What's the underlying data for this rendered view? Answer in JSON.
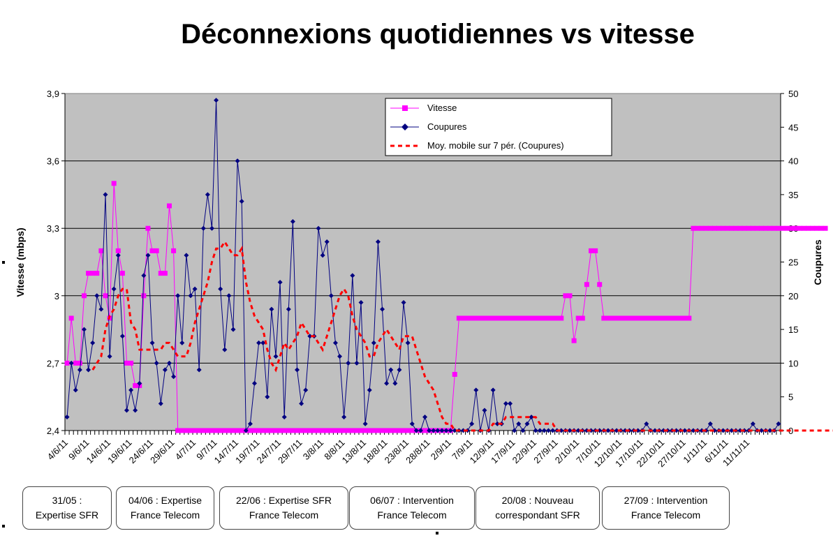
{
  "chart_data": {
    "type": "line",
    "title": "Déconnexions quotidiennes vs vitesse",
    "ylabel_left": "Vitesse (mbps)",
    "ylabel_right": "Coupures",
    "ylim_left": [
      2.4,
      3.9
    ],
    "ylim_right": [
      0,
      50
    ],
    "yticks_left": [
      "2,4",
      "2,7",
      "3",
      "3,3",
      "3,6",
      "3,9"
    ],
    "yticks_right": [
      "0",
      "5",
      "10",
      "15",
      "20",
      "25",
      "30",
      "35",
      "40",
      "45",
      "50"
    ],
    "xtick_labels": [
      "4/6/11",
      "9/6/11",
      "14/6/11",
      "19/6/11",
      "24/6/11",
      "29/6/11",
      "4/7/11",
      "9/7/11",
      "14/7/11",
      "19/7/11",
      "24/7/11",
      "29/7/11",
      "3/8/11",
      "8/8/11",
      "13/8/11",
      "18/8/11",
      "23/8/11",
      "28/8/11",
      "2/9/11",
      "7/9/11",
      "12/9/11",
      "17/9/11",
      "22/9/11",
      "27/9/11",
      "2/10/11",
      "7/10/11",
      "12/10/11",
      "17/10/11",
      "22/10/11",
      "27/10/11",
      "1/11/11",
      "6/11/11",
      "11/11/11"
    ],
    "grid": true,
    "legend_position": "top-right",
    "colors": {
      "vitesse": "#ff00ff",
      "coupures": "#000080",
      "moyenne": "#ff0000",
      "plot_bg": "#c0c0c0"
    },
    "series": [
      {
        "name": "Vitesse",
        "axis": "left",
        "start_index": 0,
        "values": [
          2.7,
          2.9,
          2.7,
          2.7,
          3.0,
          3.1,
          3.1,
          3.1,
          3.2,
          3.0,
          2.9,
          3.5,
          3.2,
          3.1,
          2.7,
          2.7,
          2.6,
          2.6,
          3.0,
          3.3,
          3.2,
          3.2,
          3.1,
          3.1,
          3.4,
          3.2,
          2.4,
          2.4,
          2.4,
          2.4,
          2.4,
          2.4,
          2.4,
          2.4,
          2.4,
          2.4,
          2.4,
          2.4,
          2.4,
          2.4,
          2.4,
          2.4,
          2.4,
          2.4,
          2.4,
          2.4,
          2.4,
          2.4,
          2.4,
          2.4,
          2.4,
          2.4,
          2.4,
          2.4,
          2.4,
          2.4,
          2.4,
          2.4,
          2.4,
          2.4,
          2.4,
          2.4,
          2.4,
          2.4,
          2.4,
          2.4,
          2.4,
          2.4,
          2.4,
          2.4,
          2.4,
          2.4,
          2.4,
          2.4,
          2.4,
          2.4,
          2.4,
          2.4,
          2.4,
          2.4,
          2.4,
          2.4,
          2.4,
          2.4,
          2.4,
          2.4,
          2.4,
          2.4,
          2.4,
          2.4,
          2.4,
          2.65,
          2.9,
          2.9,
          2.9,
          2.9,
          2.9,
          2.9,
          2.9,
          2.9,
          2.9,
          2.9,
          2.9,
          2.9,
          2.9,
          2.9,
          2.9,
          2.9,
          2.9,
          2.9,
          2.9,
          2.9,
          2.9,
          2.9,
          2.9,
          2.9,
          2.9,
          3.0,
          3.0,
          2.8,
          2.9,
          2.9,
          3.05,
          3.2,
          3.2,
          3.05,
          2.9,
          2.9,
          2.9,
          2.9,
          2.9,
          2.9,
          2.9,
          2.9,
          2.9,
          2.9,
          2.9,
          2.9,
          2.9,
          2.9,
          2.9,
          2.9,
          2.9,
          2.9,
          2.9,
          2.9,
          2.9,
          3.3,
          3.3,
          3.3,
          3.3,
          3.3,
          3.3,
          3.3,
          3.3,
          3.3,
          3.3,
          3.3,
          3.3,
          3.3,
          3.3,
          3.3,
          3.3,
          3.3,
          3.3,
          3.3,
          3.3,
          3.3,
          3.3,
          3.3,
          3.3,
          3.3,
          3.3,
          3.3,
          3.3,
          3.3,
          3.3,
          3.3,
          3.3
        ]
      },
      {
        "name": "Coupures",
        "axis": "right",
        "start_index": 0,
        "values": [
          2,
          10,
          6,
          9,
          15,
          9,
          13,
          20,
          18,
          35,
          11,
          21,
          26,
          14,
          3,
          6,
          3,
          7,
          23,
          26,
          13,
          10,
          4,
          9,
          10,
          8,
          20,
          13,
          26,
          20,
          21,
          9,
          30,
          35,
          30,
          49,
          21,
          12,
          20,
          15,
          40,
          34,
          0,
          1,
          7,
          13,
          13,
          5,
          18,
          11,
          22,
          2,
          18,
          31,
          9,
          4,
          6,
          14,
          14,
          30,
          26,
          28,
          20,
          13,
          11,
          2,
          10,
          23,
          10,
          19,
          1,
          6,
          13,
          28,
          18,
          7,
          9,
          7,
          9,
          19,
          13,
          1,
          0,
          0,
          2,
          0,
          0,
          0,
          0,
          0,
          0,
          0,
          0,
          0,
          0,
          1,
          6,
          0,
          3,
          0,
          6,
          1,
          1,
          4,
          4,
          0,
          1,
          0,
          1,
          2,
          0,
          0,
          0,
          0,
          0,
          0,
          0,
          0,
          0,
          0,
          0,
          0,
          0,
          0,
          0,
          0,
          0,
          0,
          0,
          0,
          0,
          0,
          0,
          0,
          0,
          0,
          1,
          0,
          0,
          0,
          0,
          0,
          0,
          0,
          0,
          0,
          0,
          0,
          0,
          0,
          0,
          1,
          0,
          0,
          0,
          0,
          0,
          0,
          0,
          0,
          0,
          1,
          0,
          0,
          0,
          0,
          0,
          1
        ]
      },
      {
        "name": "Moy. mobile sur 7 pér. (Coupures)",
        "axis": "right",
        "start_index": 6,
        "values": [
          9,
          10,
          11,
          15,
          17,
          18,
          20,
          21,
          21,
          16,
          15,
          12,
          12,
          12,
          12,
          12,
          12,
          13,
          13,
          12,
          11,
          11,
          11,
          13,
          16,
          18,
          20,
          22,
          25,
          27,
          27,
          28,
          27,
          26,
          26,
          27,
          22,
          19,
          17,
          16,
          15,
          12,
          10,
          9,
          11,
          13,
          12,
          13,
          14,
          16,
          15,
          14,
          14,
          13,
          12,
          14,
          16,
          18,
          20,
          21,
          20,
          17,
          15,
          14,
          13,
          11,
          11,
          13,
          14,
          15,
          14,
          13,
          12,
          14,
          14,
          14,
          12,
          10,
          8,
          7,
          6,
          4,
          2,
          1,
          1,
          0,
          0,
          0,
          0,
          0,
          0,
          0,
          0,
          0,
          1,
          1,
          1,
          2,
          2,
          2,
          2,
          2,
          2,
          2,
          2,
          1,
          1,
          1,
          1,
          0,
          0,
          0,
          0,
          0,
          0,
          0,
          0,
          0,
          0,
          0,
          0,
          0,
          0,
          0,
          0,
          0,
          0,
          0,
          0,
          0,
          0,
          0,
          0,
          0,
          0,
          0,
          0,
          0,
          0,
          0,
          0,
          0,
          0,
          0,
          0,
          0,
          0,
          0,
          0,
          0,
          0,
          0,
          0,
          0,
          0,
          0,
          0,
          0,
          0,
          0,
          0,
          0,
          0,
          0,
          0,
          0,
          0,
          0,
          0,
          0,
          0,
          0,
          0,
          0,
          0,
          0,
          0,
          0
        ]
      }
    ],
    "annotations": [
      {
        "line1": "31/05 :",
        "line2": "Expertise SFR"
      },
      {
        "line1": "04/06 : Expertise",
        "line2": "France Telecom"
      },
      {
        "line1": "22/06 : Expertise SFR",
        "line2": "France Telecom"
      },
      {
        "line1": "06/07 : Intervention",
        "line2": "France Telecom"
      },
      {
        "line1": "20/08 : Nouveau",
        "line2": "correspondant SFR"
      },
      {
        "line1": "27/09 : Intervention",
        "line2": "France Telecom"
      }
    ]
  }
}
